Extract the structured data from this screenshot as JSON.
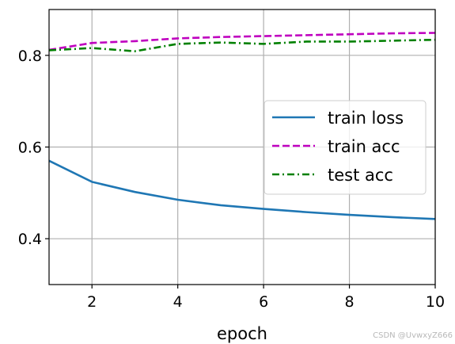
{
  "chart_data": {
    "type": "line",
    "title": "",
    "xlabel": "epoch",
    "ylabel": "",
    "xlim": [
      1,
      10
    ],
    "ylim": [
      0.3,
      0.9
    ],
    "xticks": [
      2,
      4,
      6,
      8,
      10
    ],
    "yticks": [
      0.4,
      0.6,
      0.8
    ],
    "grid": true,
    "legend_position": "center-right",
    "x": [
      1,
      2,
      3,
      4,
      5,
      6,
      7,
      8,
      9,
      10
    ],
    "series": [
      {
        "name": "train loss",
        "color": "#1f77b4",
        "style": "solid",
        "values": [
          0.57,
          0.524,
          0.502,
          0.485,
          0.473,
          0.465,
          0.458,
          0.452,
          0.447,
          0.443
        ]
      },
      {
        "name": "train acc",
        "color": "#bf00bf",
        "style": "dashed",
        "values": [
          0.812,
          0.827,
          0.831,
          0.837,
          0.84,
          0.842,
          0.844,
          0.846,
          0.848,
          0.849
        ]
      },
      {
        "name": "test acc",
        "color": "#008000",
        "style": "dashdot",
        "values": [
          0.811,
          0.816,
          0.809,
          0.825,
          0.828,
          0.825,
          0.83,
          0.83,
          0.832,
          0.834
        ]
      }
    ]
  },
  "watermark": "CSDN @UvwxyZ666"
}
